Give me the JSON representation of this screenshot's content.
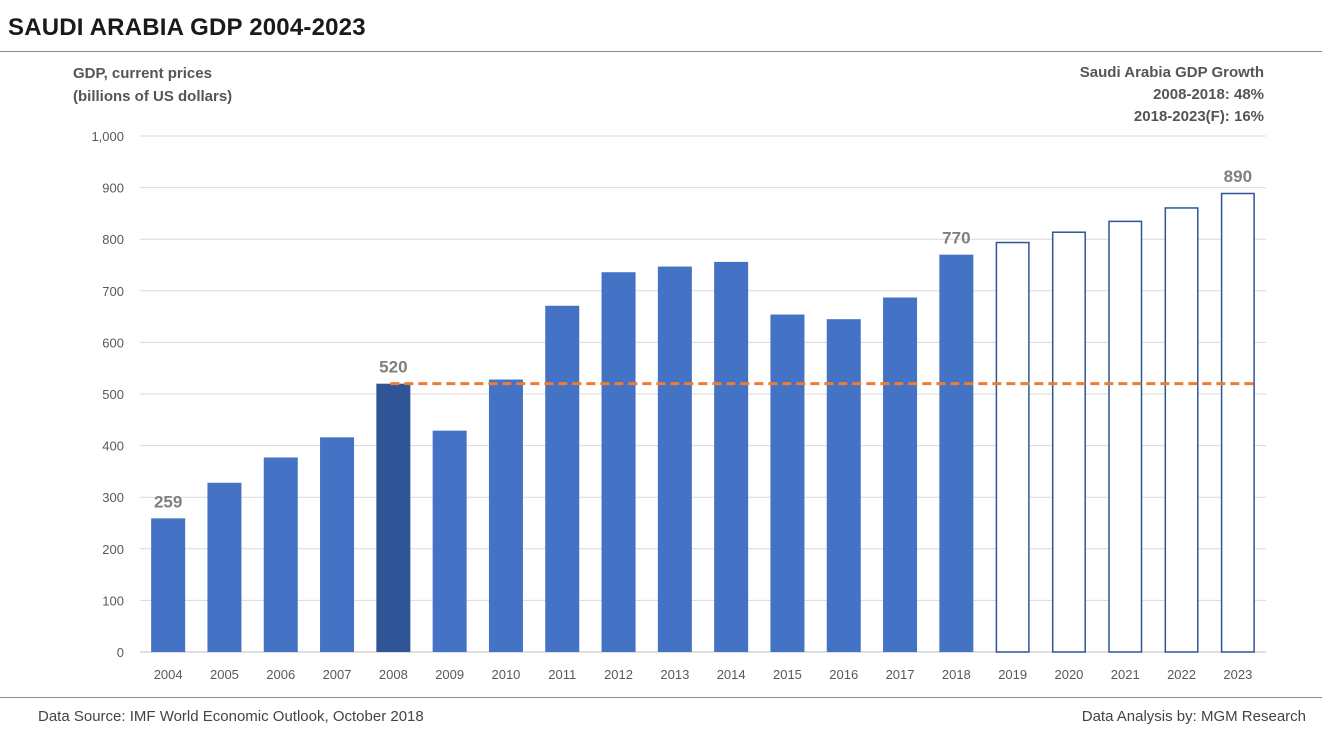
{
  "page": {
    "title": "SAUDI ARABIA GDP 2004-2023",
    "ylabel_line1": "GDP, current prices",
    "ylabel_line2": "(billions of US dollars)",
    "growth_title": "Saudi Arabia GDP Growth",
    "growth_line1": "2008-2018: 48%",
    "growth_line2": "2018-2023(F): 16%",
    "source": "Data Source: IMF World Economic Outlook, October 2018",
    "analysis": "Data Analysis by: MGM Research"
  },
  "colors": {
    "bar": "#4472c4",
    "bar_highlight": "#2f5597",
    "forecast_stroke": "#2f5597",
    "reference_line": "#ed7d31",
    "grid": "#d9d9d9",
    "axis_text": "#595959",
    "label_text": "#7f7f7f"
  },
  "chart_data": {
    "type": "bar",
    "title": "SAUDI ARABIA GDP 2004-2023",
    "ylabel": "GDP, current prices (billions of US dollars)",
    "xlabel": "",
    "ylim": [
      0,
      1000
    ],
    "yticks": [
      "0",
      "100",
      "200",
      "300",
      "400",
      "500",
      "600",
      "700",
      "800",
      "900",
      "1,000"
    ],
    "grid": true,
    "categories": [
      "2004",
      "2005",
      "2006",
      "2007",
      "2008",
      "2009",
      "2010",
      "2011",
      "2012",
      "2013",
      "2014",
      "2015",
      "2016",
      "2017",
      "2018",
      "2019",
      "2020",
      "2021",
      "2022",
      "2023"
    ],
    "values": [
      259,
      328,
      377,
      416,
      520,
      429,
      528,
      671,
      736,
      747,
      756,
      654,
      645,
      687,
      770,
      795,
      815,
      836,
      862,
      890
    ],
    "highlight_category": "2008",
    "forecast_from": "2019",
    "reference_line": 520,
    "data_labels": [
      {
        "category": "2004",
        "text": "259"
      },
      {
        "category": "2008",
        "text": "520"
      },
      {
        "category": "2018",
        "text": "770"
      },
      {
        "category": "2023",
        "text": "890"
      }
    ]
  }
}
